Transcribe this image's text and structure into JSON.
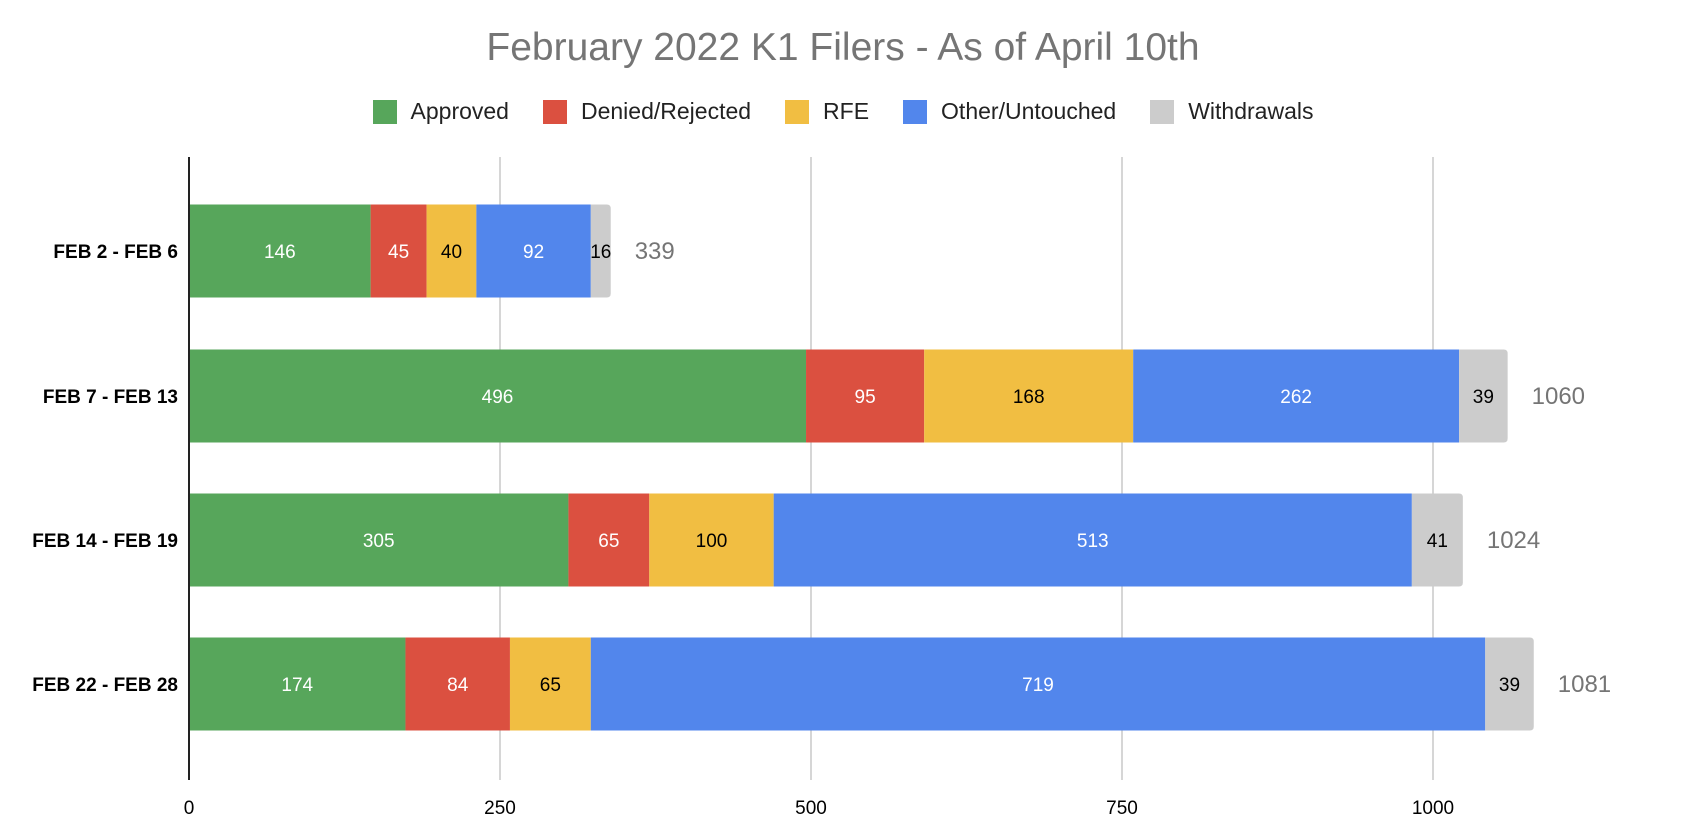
{
  "chart_data": {
    "type": "bar",
    "orientation": "horizontal",
    "stacked": true,
    "title": "February 2022 K1 Filers - As of April 10th",
    "categories": [
      "FEB 2 - FEB 6",
      "FEB 7 - FEB 13",
      "FEB 14 - FEB 19",
      "FEB 22 - FEB 28"
    ],
    "series": [
      {
        "name": "Approved",
        "color": "#57a65b",
        "label_color": "#ffffff",
        "values": [
          146,
          496,
          305,
          174
        ]
      },
      {
        "name": "Denied/Rejected",
        "color": "#db5040",
        "label_color": "#ffffff",
        "values": [
          45,
          95,
          65,
          84
        ]
      },
      {
        "name": "RFE",
        "color": "#f1be42",
        "label_color": "#000000",
        "values": [
          40,
          168,
          100,
          65
        ]
      },
      {
        "name": "Other/Untouched",
        "color": "#5286ec",
        "label_color": "#ffffff",
        "values": [
          92,
          262,
          513,
          719
        ]
      },
      {
        "name": "Withdrawals",
        "color": "#cccccc",
        "label_color": "#000000",
        "values": [
          16,
          39,
          41,
          39
        ]
      }
    ],
    "totals": [
      339,
      1060,
      1024,
      1081
    ],
    "xlim": [
      0,
      1200
    ],
    "xticks": [
      0,
      250,
      500,
      750,
      1000
    ],
    "xlabel": "",
    "ylabel": "",
    "grid": "vertical",
    "legend_position": "top"
  }
}
